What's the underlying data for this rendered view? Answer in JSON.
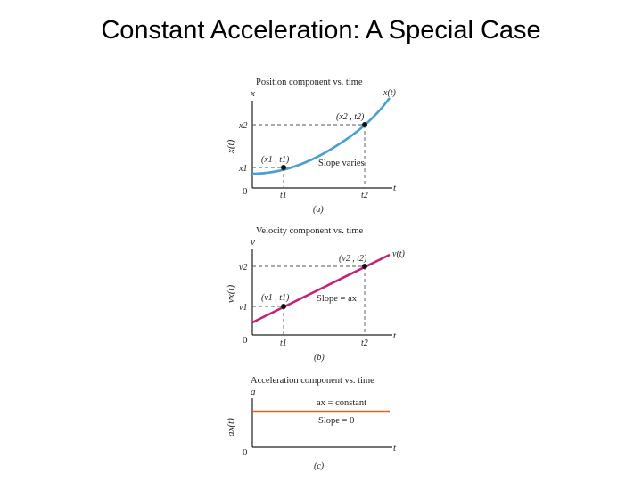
{
  "title": "Constant Acceleration: A Special Case",
  "colors": {
    "position_curve": "#4a9fd0",
    "velocity_line": "#c2227a",
    "acceleration_line": "#d9661f",
    "axis": "#222222",
    "dashed": "#555555"
  },
  "panel_a": {
    "heading": "Position component vs. time",
    "y_axis_symbol": "x",
    "y_label": "x(t)",
    "curve_label": "x(t)",
    "point1": "(x1 , t1)",
    "point2": "(x2 , t2)",
    "y_tick_1": "x1",
    "y_tick_2": "x2",
    "origin": "0",
    "x_tick_1": "t1",
    "x_tick_2": "t2",
    "x_axis_symbol": "t",
    "annotation": "Slope varies",
    "caption": "(a)"
  },
  "panel_b": {
    "heading": "Velocity component vs. time",
    "y_axis_symbol": "v",
    "y_label": "vx(t)",
    "curve_label": "v(t)",
    "point1": "(v1 , t1)",
    "point2": "(v2 , t2)",
    "y_tick_1": "v1",
    "y_tick_2": "v2",
    "origin": "0",
    "x_tick_1": "t1",
    "x_tick_2": "t2",
    "x_axis_symbol": "t",
    "annotation": "Slope = ax",
    "caption": "(b)"
  },
  "panel_c": {
    "heading": "Acceleration component vs. time",
    "y_axis_symbol": "a",
    "y_label": "ax(t)",
    "annotation_top": "ax = constant",
    "annotation_bottom": "Slope = 0",
    "origin": "0",
    "x_axis_symbol": "t",
    "caption": "(c)"
  }
}
